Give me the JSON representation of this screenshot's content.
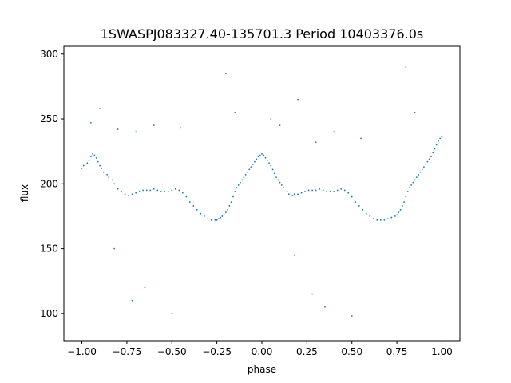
{
  "chart_data": {
    "type": "scatter",
    "title": "1SWASPJ083327.40-135701.3 Period 10403376.0s",
    "xlabel": "phase",
    "ylabel": "flux",
    "xlim": [
      -1.1,
      1.1
    ],
    "ylim": [
      79,
      306
    ],
    "x_ticks": [
      -1.0,
      -0.75,
      -0.5,
      -0.25,
      0.0,
      0.25,
      0.5,
      0.75,
      1.0
    ],
    "x_tick_labels": [
      "−1.00",
      "−0.75",
      "−0.50",
      "−0.25",
      "0.00",
      "0.25",
      "0.50",
      "0.75",
      "1.00"
    ],
    "y_ticks": [
      100,
      150,
      200,
      250,
      300
    ],
    "y_tick_labels": [
      "100",
      "150",
      "200",
      "250",
      "300"
    ],
    "grid": false,
    "marker_color": "#1f77b4",
    "series": [
      {
        "x": [
          -1.0,
          -0.99,
          -0.97,
          -0.96,
          -0.95,
          -0.94,
          -0.93,
          -0.92,
          -0.91,
          -0.9,
          -0.89,
          -0.88,
          -0.86,
          -0.85,
          -0.83,
          -0.82,
          -0.8,
          -0.78,
          -0.76,
          -0.74,
          -0.72,
          -0.7,
          -0.68,
          -0.66,
          -0.64,
          -0.62,
          -0.6,
          -0.58,
          -0.56,
          -0.54,
          -0.52,
          -0.5,
          -0.48,
          -0.46,
          -0.44,
          -0.42,
          -0.4,
          -0.38,
          -0.36,
          -0.34,
          -0.32,
          -0.3,
          -0.28,
          -0.26,
          -0.25,
          -0.24,
          -0.23,
          -0.22,
          -0.21,
          -0.2,
          -0.19,
          -0.18,
          -0.17,
          -0.16,
          -0.15,
          -0.14,
          -0.13,
          -0.12,
          -0.11,
          -0.1,
          -0.09,
          -0.08,
          -0.07,
          -0.06,
          -0.05,
          -0.04,
          -0.03,
          -0.02,
          -0.01,
          0.0,
          0.01,
          0.02,
          0.03,
          0.04,
          0.05,
          0.06,
          0.07,
          0.08,
          0.09,
          0.1,
          0.11,
          0.12,
          0.14,
          0.15,
          0.17,
          0.18,
          0.2,
          0.22,
          0.24,
          0.26,
          0.28,
          0.3,
          0.32,
          0.34,
          0.36,
          0.38,
          0.4,
          0.42,
          0.44,
          0.46,
          0.48,
          0.5,
          0.52,
          0.54,
          0.56,
          0.58,
          0.6,
          0.62,
          0.64,
          0.66,
          0.68,
          0.7,
          0.72,
          0.74,
          0.75,
          0.76,
          0.77,
          0.78,
          0.79,
          0.8,
          0.81,
          0.82,
          0.83,
          0.84,
          0.85,
          0.86,
          0.87,
          0.88,
          0.89,
          0.9,
          0.91,
          0.92,
          0.93,
          0.94,
          0.95,
          0.96,
          0.97,
          0.98,
          0.99,
          1.0,
          -0.95,
          -0.9,
          -0.8,
          -0.7,
          -0.6,
          -0.45,
          -0.2,
          -0.15,
          0.05,
          0.1,
          0.2,
          0.3,
          0.4,
          0.55,
          0.8,
          0.85,
          -0.72,
          -0.65,
          0.28,
          0.35,
          -0.82,
          0.18,
          -0.5,
          0.5
        ],
        "y": [
          212,
          214,
          216,
          218,
          221,
          223,
          222,
          220,
          217,
          214,
          212,
          209,
          207,
          205,
          203,
          200,
          196,
          194,
          192,
          191,
          192,
          193,
          194,
          195,
          195,
          195,
          196,
          195,
          194,
          194,
          194,
          195,
          196,
          195,
          193,
          190,
          186,
          183,
          180,
          177,
          175,
          173,
          172,
          172,
          172,
          173,
          174,
          175,
          176,
          178,
          180,
          183,
          186,
          190,
          194,
          197,
          199,
          201,
          203,
          205,
          207,
          209,
          211,
          213,
          215,
          217,
          219,
          221,
          222,
          223,
          222,
          220,
          218,
          216,
          214,
          211,
          208,
          205,
          203,
          201,
          199,
          197,
          194,
          192,
          191,
          192,
          192,
          193,
          194,
          195,
          195,
          195,
          196,
          195,
          194,
          194,
          194,
          195,
          196,
          195,
          193,
          190,
          186,
          183,
          180,
          177,
          175,
          173,
          172,
          172,
          172,
          173,
          174,
          175,
          176,
          178,
          180,
          183,
          186,
          190,
          194,
          197,
          199,
          201,
          203,
          205,
          207,
          209,
          211,
          213,
          215,
          217,
          219,
          221,
          224,
          227,
          230,
          233,
          235,
          236,
          247,
          258,
          242,
          240,
          245,
          243,
          285,
          255,
          250,
          245,
          265,
          232,
          240,
          235,
          290,
          255,
          110,
          120,
          115,
          105,
          150,
          145,
          100,
          98
        ]
      }
    ]
  }
}
